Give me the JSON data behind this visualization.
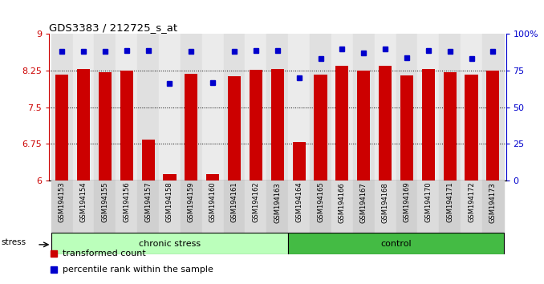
{
  "title": "GDS3383 / 212725_s_at",
  "samples": [
    "GSM194153",
    "GSM194154",
    "GSM194155",
    "GSM194156",
    "GSM194157",
    "GSM194158",
    "GSM194159",
    "GSM194160",
    "GSM194161",
    "GSM194162",
    "GSM194163",
    "GSM194164",
    "GSM194165",
    "GSM194166",
    "GSM194167",
    "GSM194168",
    "GSM194169",
    "GSM194170",
    "GSM194171",
    "GSM194172",
    "GSM194173"
  ],
  "red_bars": [
    8.17,
    8.28,
    8.22,
    8.25,
    6.83,
    6.13,
    8.19,
    6.13,
    8.14,
    8.27,
    8.29,
    6.78,
    8.17,
    8.35,
    8.25,
    8.35,
    8.15,
    8.29,
    8.22,
    8.17,
    8.25
  ],
  "blue_dots": [
    88,
    88,
    88,
    89,
    89,
    66,
    88,
    67,
    88,
    89,
    89,
    70,
    83,
    90,
    87,
    90,
    84,
    89,
    88,
    83,
    88
  ],
  "chronic_stress_count": 11,
  "control_count": 10,
  "ylim_left": [
    6,
    9
  ],
  "ylim_right": [
    0,
    100
  ],
  "yticks_left": [
    6,
    6.75,
    7.5,
    8.25,
    9
  ],
  "yticks_right": [
    0,
    25,
    50,
    75,
    100
  ],
  "ytick_labels_right": [
    "0",
    "25",
    "50",
    "75",
    "100%"
  ],
  "bar_color": "#cc0000",
  "dot_color": "#0000cc",
  "chronic_color": "#bbffbb",
  "control_color": "#44bb44",
  "stress_label": "stress",
  "chronic_label": "chronic stress",
  "control_label": "control",
  "legend_bar": "transformed count",
  "legend_dot": "percentile rank within the sample",
  "bar_width": 0.6
}
